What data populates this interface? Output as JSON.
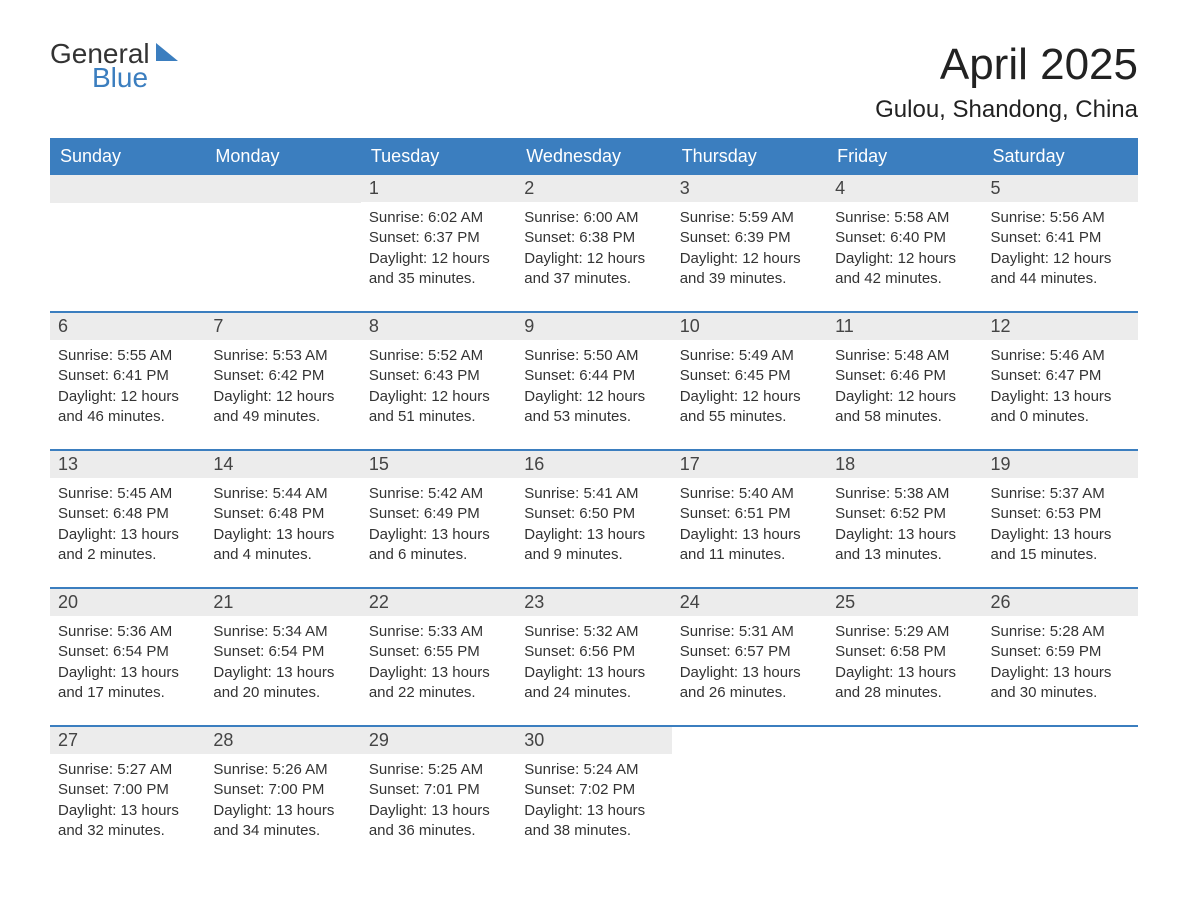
{
  "brand": {
    "general": "General",
    "blue": "Blue",
    "sail_color": "#3b7ebf"
  },
  "title": "April 2025",
  "location": "Gulou, Shandong, China",
  "colors": {
    "header_bg": "#3b7ebf",
    "header_text": "#ffffff",
    "daynum_bg": "#ececec",
    "daynum_text": "#444444",
    "body_text": "#333333",
    "week_border": "#3b7ebf"
  },
  "day_names": [
    "Sunday",
    "Monday",
    "Tuesday",
    "Wednesday",
    "Thursday",
    "Friday",
    "Saturday"
  ],
  "weeks": [
    {
      "days": [
        {
          "num": "",
          "empty": true
        },
        {
          "num": "",
          "empty": true
        },
        {
          "num": "1",
          "sunrise": "Sunrise: 6:02 AM",
          "sunset": "Sunset: 6:37 PM",
          "daylight1": "Daylight: 12 hours",
          "daylight2": "and 35 minutes."
        },
        {
          "num": "2",
          "sunrise": "Sunrise: 6:00 AM",
          "sunset": "Sunset: 6:38 PM",
          "daylight1": "Daylight: 12 hours",
          "daylight2": "and 37 minutes."
        },
        {
          "num": "3",
          "sunrise": "Sunrise: 5:59 AM",
          "sunset": "Sunset: 6:39 PM",
          "daylight1": "Daylight: 12 hours",
          "daylight2": "and 39 minutes."
        },
        {
          "num": "4",
          "sunrise": "Sunrise: 5:58 AM",
          "sunset": "Sunset: 6:40 PM",
          "daylight1": "Daylight: 12 hours",
          "daylight2": "and 42 minutes."
        },
        {
          "num": "5",
          "sunrise": "Sunrise: 5:56 AM",
          "sunset": "Sunset: 6:41 PM",
          "daylight1": "Daylight: 12 hours",
          "daylight2": "and 44 minutes."
        }
      ]
    },
    {
      "days": [
        {
          "num": "6",
          "sunrise": "Sunrise: 5:55 AM",
          "sunset": "Sunset: 6:41 PM",
          "daylight1": "Daylight: 12 hours",
          "daylight2": "and 46 minutes."
        },
        {
          "num": "7",
          "sunrise": "Sunrise: 5:53 AM",
          "sunset": "Sunset: 6:42 PM",
          "daylight1": "Daylight: 12 hours",
          "daylight2": "and 49 minutes."
        },
        {
          "num": "8",
          "sunrise": "Sunrise: 5:52 AM",
          "sunset": "Sunset: 6:43 PM",
          "daylight1": "Daylight: 12 hours",
          "daylight2": "and 51 minutes."
        },
        {
          "num": "9",
          "sunrise": "Sunrise: 5:50 AM",
          "sunset": "Sunset: 6:44 PM",
          "daylight1": "Daylight: 12 hours",
          "daylight2": "and 53 minutes."
        },
        {
          "num": "10",
          "sunrise": "Sunrise: 5:49 AM",
          "sunset": "Sunset: 6:45 PM",
          "daylight1": "Daylight: 12 hours",
          "daylight2": "and 55 minutes."
        },
        {
          "num": "11",
          "sunrise": "Sunrise: 5:48 AM",
          "sunset": "Sunset: 6:46 PM",
          "daylight1": "Daylight: 12 hours",
          "daylight2": "and 58 minutes."
        },
        {
          "num": "12",
          "sunrise": "Sunrise: 5:46 AM",
          "sunset": "Sunset: 6:47 PM",
          "daylight1": "Daylight: 13 hours",
          "daylight2": "and 0 minutes."
        }
      ]
    },
    {
      "days": [
        {
          "num": "13",
          "sunrise": "Sunrise: 5:45 AM",
          "sunset": "Sunset: 6:48 PM",
          "daylight1": "Daylight: 13 hours",
          "daylight2": "and 2 minutes."
        },
        {
          "num": "14",
          "sunrise": "Sunrise: 5:44 AM",
          "sunset": "Sunset: 6:48 PM",
          "daylight1": "Daylight: 13 hours",
          "daylight2": "and 4 minutes."
        },
        {
          "num": "15",
          "sunrise": "Sunrise: 5:42 AM",
          "sunset": "Sunset: 6:49 PM",
          "daylight1": "Daylight: 13 hours",
          "daylight2": "and 6 minutes."
        },
        {
          "num": "16",
          "sunrise": "Sunrise: 5:41 AM",
          "sunset": "Sunset: 6:50 PM",
          "daylight1": "Daylight: 13 hours",
          "daylight2": "and 9 minutes."
        },
        {
          "num": "17",
          "sunrise": "Sunrise: 5:40 AM",
          "sunset": "Sunset: 6:51 PM",
          "daylight1": "Daylight: 13 hours",
          "daylight2": "and 11 minutes."
        },
        {
          "num": "18",
          "sunrise": "Sunrise: 5:38 AM",
          "sunset": "Sunset: 6:52 PM",
          "daylight1": "Daylight: 13 hours",
          "daylight2": "and 13 minutes."
        },
        {
          "num": "19",
          "sunrise": "Sunrise: 5:37 AM",
          "sunset": "Sunset: 6:53 PM",
          "daylight1": "Daylight: 13 hours",
          "daylight2": "and 15 minutes."
        }
      ]
    },
    {
      "days": [
        {
          "num": "20",
          "sunrise": "Sunrise: 5:36 AM",
          "sunset": "Sunset: 6:54 PM",
          "daylight1": "Daylight: 13 hours",
          "daylight2": "and 17 minutes."
        },
        {
          "num": "21",
          "sunrise": "Sunrise: 5:34 AM",
          "sunset": "Sunset: 6:54 PM",
          "daylight1": "Daylight: 13 hours",
          "daylight2": "and 20 minutes."
        },
        {
          "num": "22",
          "sunrise": "Sunrise: 5:33 AM",
          "sunset": "Sunset: 6:55 PM",
          "daylight1": "Daylight: 13 hours",
          "daylight2": "and 22 minutes."
        },
        {
          "num": "23",
          "sunrise": "Sunrise: 5:32 AM",
          "sunset": "Sunset: 6:56 PM",
          "daylight1": "Daylight: 13 hours",
          "daylight2": "and 24 minutes."
        },
        {
          "num": "24",
          "sunrise": "Sunrise: 5:31 AM",
          "sunset": "Sunset: 6:57 PM",
          "daylight1": "Daylight: 13 hours",
          "daylight2": "and 26 minutes."
        },
        {
          "num": "25",
          "sunrise": "Sunrise: 5:29 AM",
          "sunset": "Sunset: 6:58 PM",
          "daylight1": "Daylight: 13 hours",
          "daylight2": "and 28 minutes."
        },
        {
          "num": "26",
          "sunrise": "Sunrise: 5:28 AM",
          "sunset": "Sunset: 6:59 PM",
          "daylight1": "Daylight: 13 hours",
          "daylight2": "and 30 minutes."
        }
      ]
    },
    {
      "days": [
        {
          "num": "27",
          "sunrise": "Sunrise: 5:27 AM",
          "sunset": "Sunset: 7:00 PM",
          "daylight1": "Daylight: 13 hours",
          "daylight2": "and 32 minutes."
        },
        {
          "num": "28",
          "sunrise": "Sunrise: 5:26 AM",
          "sunset": "Sunset: 7:00 PM",
          "daylight1": "Daylight: 13 hours",
          "daylight2": "and 34 minutes."
        },
        {
          "num": "29",
          "sunrise": "Sunrise: 5:25 AM",
          "sunset": "Sunset: 7:01 PM",
          "daylight1": "Daylight: 13 hours",
          "daylight2": "and 36 minutes."
        },
        {
          "num": "30",
          "sunrise": "Sunrise: 5:24 AM",
          "sunset": "Sunset: 7:02 PM",
          "daylight1": "Daylight: 13 hours",
          "daylight2": "and 38 minutes."
        },
        {
          "num": "",
          "empty": true,
          "trailing": true
        },
        {
          "num": "",
          "empty": true,
          "trailing": true
        },
        {
          "num": "",
          "empty": true,
          "trailing": true
        }
      ]
    }
  ]
}
